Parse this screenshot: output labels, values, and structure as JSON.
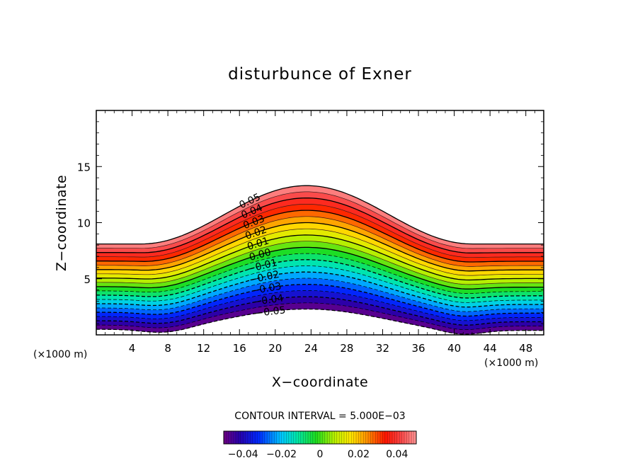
{
  "chart_data": {
    "type": "contour",
    "title": "disturbunce of Exner",
    "xlabel": "X−coordinate",
    "ylabel": "Z−coordinate",
    "x_unit_left": "(×1000 m)",
    "x_unit_right": "(×1000 m)",
    "xlim": [
      0,
      50
    ],
    "ylim": [
      0,
      20
    ],
    "x_ticks": [
      4,
      8,
      12,
      16,
      20,
      24,
      28,
      32,
      36,
      40,
      44,
      48
    ],
    "x_tick_labels": [
      "4",
      "8",
      "12",
      "16",
      "20",
      "24",
      "28",
      "32",
      "36",
      "40",
      "44",
      "48"
    ],
    "y_ticks": [
      5,
      10,
      15
    ],
    "y_tick_labels": [
      "5",
      "10",
      "15"
    ],
    "contour_interval_text": "CONTOUR INTERVAL = 5.000E−03",
    "contour_interval": 0.005,
    "value_range": [
      -0.05,
      0.05
    ],
    "contour_labels": [
      "0.05",
      "0.04",
      "0.03",
      "0.02",
      "0.01",
      "0.00",
      "−0.01",
      "−0.02",
      "−0.03",
      "−0.04",
      "−0.05"
    ],
    "surface_shape": {
      "flat_top_left": 8.1,
      "flat_top_right": 8.1,
      "peak_top": 13.3,
      "peak_x": 23.5,
      "hill_start_x": 5,
      "hill_end_x": 42,
      "base_left": 0.5,
      "base_right": 0.4,
      "base_peak": 2.3
    },
    "colorbar": {
      "tick_labels": [
        "−0.04",
        "−0.02",
        "0",
        "0.02",
        "0.04"
      ],
      "tick_values": [
        -0.04,
        -0.02,
        0,
        0.02,
        0.04
      ]
    }
  }
}
